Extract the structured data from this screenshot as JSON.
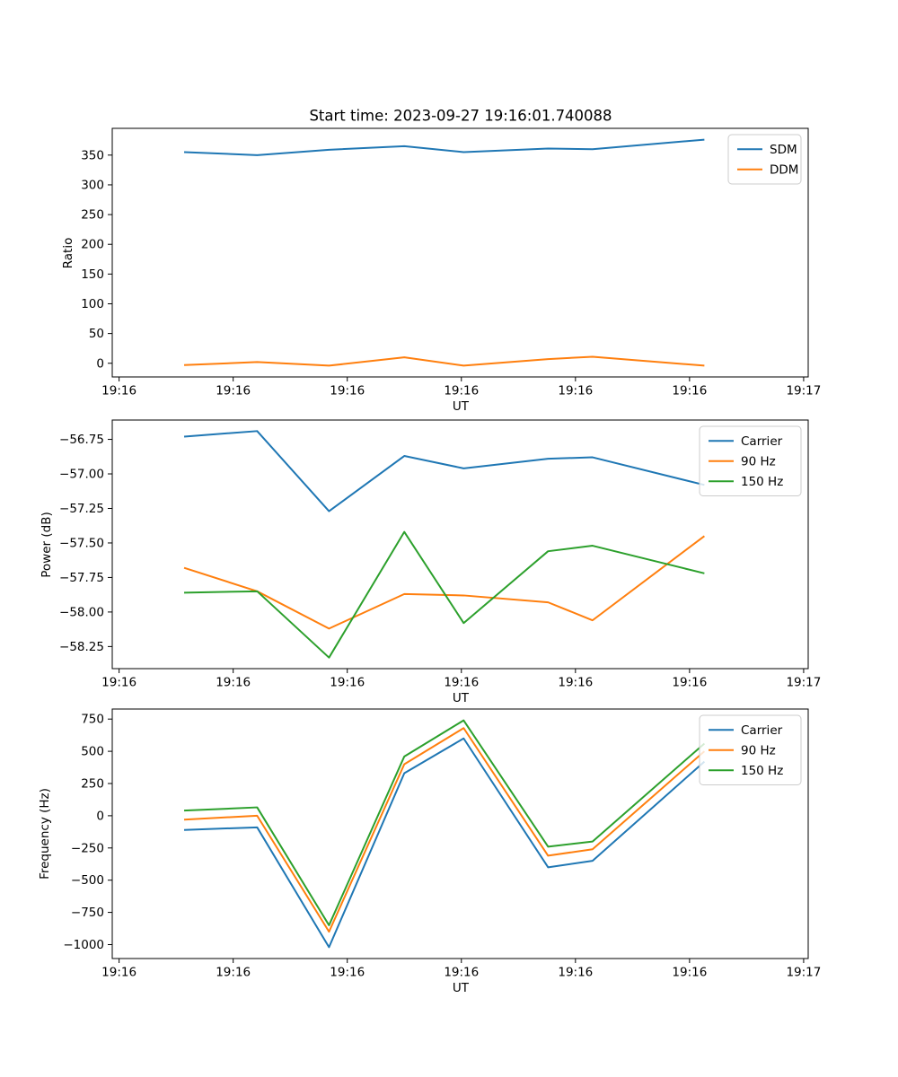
{
  "title": "Start time: 2023-09-27 19:16:01.740088",
  "chart_data": [
    {
      "type": "line",
      "title": "Start time: 2023-09-27 19:16:01.740088",
      "xlabel": "UT",
      "ylabel": "Ratio",
      "x": [
        5.7,
        12.1,
        18.4,
        25.0,
        30.2,
        37.6,
        41.5,
        51.3
      ],
      "series": [
        {
          "name": "SDM",
          "color": "#1f77b4",
          "values": [
            355,
            350,
            359,
            365,
            355,
            361,
            360,
            376
          ]
        },
        {
          "name": "DDM",
          "color": "#ff7f0e",
          "values": [
            -3,
            2,
            -4,
            10,
            -4,
            7,
            11,
            -4
          ]
        }
      ],
      "xlim": [
        -0.6,
        60.4
      ],
      "ylim": [
        -23,
        395
      ],
      "xticks": {
        "values": [
          0,
          10,
          20,
          30,
          40,
          50,
          60
        ],
        "labels": [
          "19:16",
          "19:16",
          "19:16",
          "19:16",
          "19:16",
          "19:16",
          "19:17"
        ]
      },
      "yticks": {
        "values": [
          0,
          50,
          100,
          150,
          200,
          250,
          300,
          350
        ],
        "labels": [
          "0",
          "50",
          "100",
          "150",
          "200",
          "250",
          "300",
          "350"
        ]
      },
      "grid": false,
      "legend_position": "upper-right"
    },
    {
      "type": "line",
      "xlabel": "UT",
      "ylabel": "Power (dB)",
      "x": [
        5.7,
        12.1,
        18.4,
        25.0,
        30.2,
        37.6,
        41.5,
        51.3
      ],
      "series": [
        {
          "name": "Carrier",
          "color": "#1f77b4",
          "values": [
            -56.73,
            -56.69,
            -57.27,
            -56.87,
            -56.96,
            -56.89,
            -56.88,
            -57.08
          ]
        },
        {
          "name": "90 Hz",
          "color": "#ff7f0e",
          "values": [
            -57.68,
            -57.85,
            -58.12,
            -57.87,
            -57.88,
            -57.93,
            -58.06,
            -57.45
          ]
        },
        {
          "name": "150 Hz",
          "color": "#2ca02c",
          "values": [
            -57.86,
            -57.85,
            -58.33,
            -57.42,
            -58.08,
            -57.56,
            -57.52,
            -57.72
          ]
        }
      ],
      "xlim": [
        -0.6,
        60.4
      ],
      "ylim": [
        -58.41,
        -56.61
      ],
      "xticks": {
        "values": [
          0,
          10,
          20,
          30,
          40,
          50,
          60
        ],
        "labels": [
          "19:16",
          "19:16",
          "19:16",
          "19:16",
          "19:16",
          "19:16",
          "19:17"
        ]
      },
      "yticks": {
        "values": [
          -58.25,
          -58.0,
          -57.75,
          -57.5,
          -57.25,
          -57.0,
          -56.75
        ],
        "labels": [
          "−58.25",
          "−58.00",
          "−57.75",
          "−57.50",
          "−57.25",
          "−57.00",
          "−56.75"
        ]
      },
      "grid": false,
      "legend_position": "upper-right"
    },
    {
      "type": "line",
      "xlabel": "UT",
      "ylabel": "Frequency (Hz)",
      "x": [
        5.7,
        12.1,
        18.4,
        25.0,
        30.2,
        37.6,
        41.5,
        51.3
      ],
      "series": [
        {
          "name": "Carrier",
          "color": "#1f77b4",
          "values": [
            -110,
            -90,
            -1020,
            330,
            600,
            -400,
            -350,
            420
          ]
        },
        {
          "name": "90 Hz",
          "color": "#ff7f0e",
          "values": [
            -30,
            0,
            -900,
            400,
            680,
            -310,
            -260,
            500
          ]
        },
        {
          "name": "150 Hz",
          "color": "#2ca02c",
          "values": [
            40,
            65,
            -850,
            460,
            740,
            -240,
            -200,
            560
          ]
        }
      ],
      "xlim": [
        -0.6,
        60.4
      ],
      "ylim": [
        -1108,
        828
      ],
      "xticks": {
        "values": [
          0,
          10,
          20,
          30,
          40,
          50,
          60
        ],
        "labels": [
          "19:16",
          "19:16",
          "19:16",
          "19:16",
          "19:16",
          "19:16",
          "19:17"
        ]
      },
      "yticks": {
        "values": [
          -1000,
          -750,
          -500,
          -250,
          0,
          250,
          500,
          750
        ],
        "labels": [
          "−1000",
          "−750",
          "−500",
          "−250",
          "0",
          "250",
          "500",
          "750"
        ]
      },
      "grid": false,
      "legend_position": "upper-right"
    }
  ]
}
